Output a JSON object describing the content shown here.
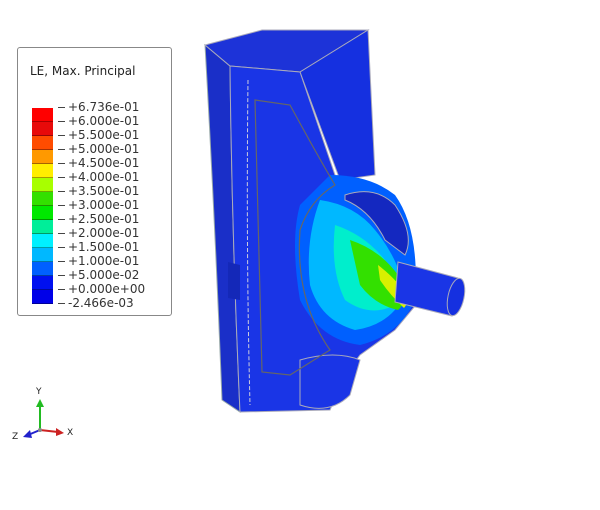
{
  "legend": {
    "title": "LE, Max. Principal",
    "labels": [
      "+6.736e-01",
      "+6.000e-01",
      "+5.500e-01",
      "+5.000e-01",
      "+4.500e-01",
      "+4.000e-01",
      "+3.500e-01",
      "+3.000e-01",
      "+2.500e-01",
      "+2.000e-01",
      "+1.500e-01",
      "+1.000e-01",
      "+5.000e-02",
      "+0.000e+00",
      "-2.466e-03"
    ],
    "colors": [
      "#ff0000",
      "#e80a0a",
      "#ff4c00",
      "#ff9900",
      "#ffee00",
      "#a8ff00",
      "#33e000",
      "#00e800",
      "#00ee99",
      "#00f0ff",
      "#00b8ff",
      "#0060ff",
      "#0010f0",
      "#0000e8"
    ]
  },
  "triad": {
    "x": "X",
    "y": "Y",
    "z": "Z"
  }
}
